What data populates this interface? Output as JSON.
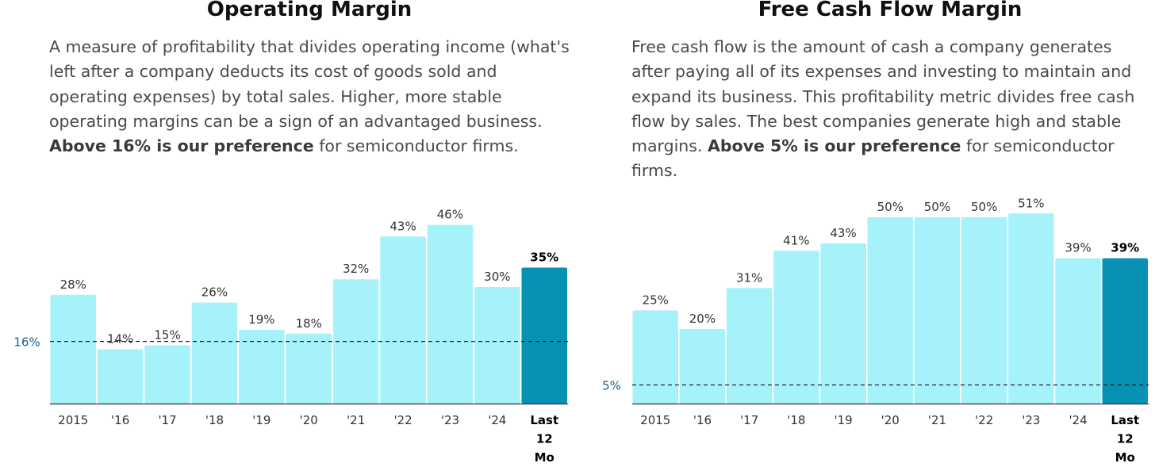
{
  "panels": [
    {
      "title": "Operating Margin",
      "description_parts": [
        "A measure of profitability that divides operating income (what's left after a company deducts its cost of goods sold and operating expenses) by total sales. Higher, more stable operating margins can be a sign of an advantaged business. ",
        "Above 16% is our preference",
        " for semiconductor firms."
      ]
    },
    {
      "title": "Free Cash Flow Margin",
      "description_parts": [
        "Free cash flow is the amount of cash a company generates after paying all of its expenses and investing to maintain and expand its business. This profitability metric divides free cash flow by sales. The best companies generate high and stable margins. ",
        "Above 5% is our preference",
        " for semiconductor firms."
      ]
    }
  ],
  "chart_data": [
    {
      "type": "bar",
      "categories": [
        "2015",
        "'16",
        "'17",
        "'18",
        "'19",
        "'20",
        "'21",
        "'22",
        "'23",
        "'24",
        "Last 12 Mo"
      ],
      "values": [
        28,
        14,
        15,
        26,
        19,
        18,
        32,
        43,
        46,
        30,
        35
      ],
      "value_labels": [
        "28%",
        "14%",
        "15%",
        "26%",
        "19%",
        "18%",
        "32%",
        "43%",
        "46%",
        "30%",
        "35%"
      ],
      "highlight_index": 10,
      "reference_line": {
        "value": 16,
        "label": "16%"
      },
      "ylim": [
        0,
        48
      ],
      "grid": false,
      "colors": {
        "bar": "#a6f2fb",
        "highlight": "#0791b4",
        "reference_label": "#1a5f8a",
        "axis": "#333333"
      }
    },
    {
      "type": "bar",
      "categories": [
        "2015",
        "'16",
        "'17",
        "'18",
        "'19",
        "'20",
        "'21",
        "'22",
        "'23",
        "'24",
        "Last 12 Mo"
      ],
      "values": [
        25,
        20,
        31,
        41,
        43,
        50,
        50,
        50,
        51,
        39,
        39
      ],
      "value_labels": [
        "25%",
        "20%",
        "31%",
        "41%",
        "43%",
        "50%",
        "50%",
        "50%",
        "51%",
        "39%",
        "39%"
      ],
      "highlight_index": 10,
      "reference_line": {
        "value": 5,
        "label": "5%"
      },
      "ylim": [
        0,
        54
      ],
      "grid": false,
      "colors": {
        "bar": "#a6f2fb",
        "highlight": "#0791b4",
        "reference_label": "#1a5f8a",
        "axis": "#333333"
      }
    }
  ]
}
